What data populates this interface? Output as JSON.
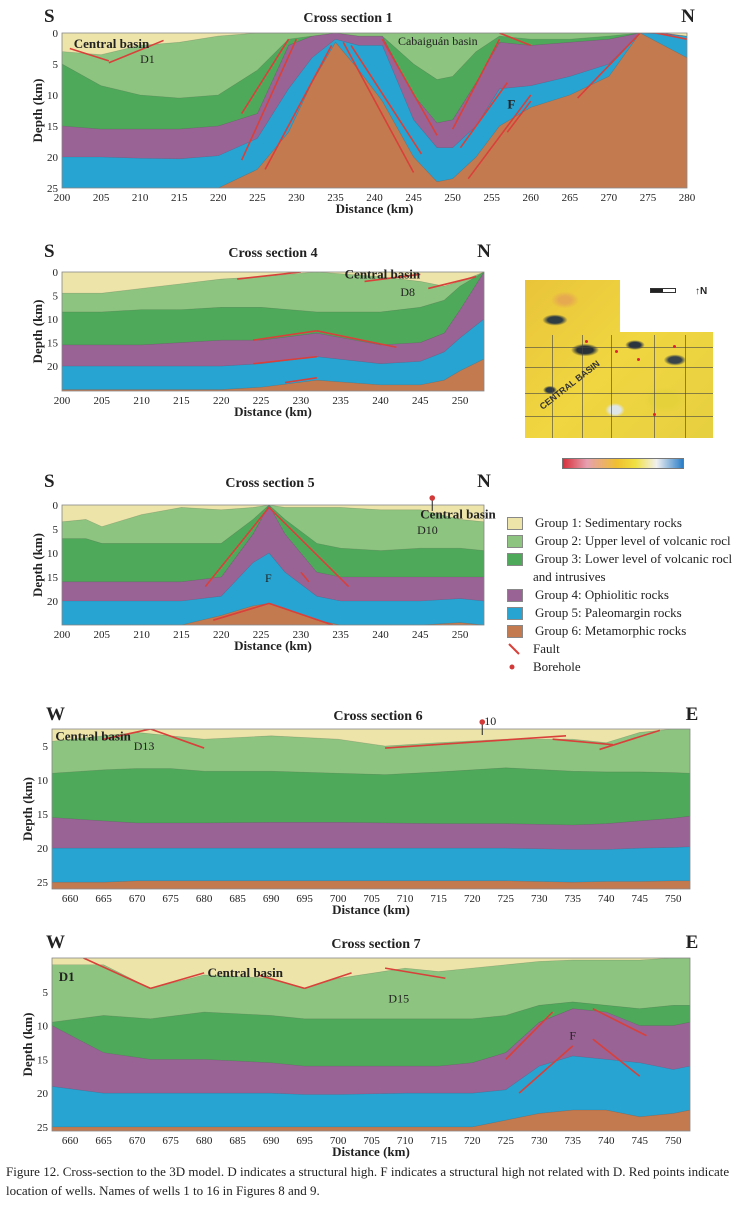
{
  "colors": {
    "g1": "#ece4a9",
    "g2": "#8dc47f",
    "g3": "#4fa95b",
    "g4": "#9a6396",
    "g5": "#28a4d3",
    "g6": "#c47a4f",
    "fault": "#d9403a",
    "borehole": "#d23a3a"
  },
  "axis": {
    "depth_label": "Depth (km)",
    "distance_label": "Distance (km)"
  },
  "sections": [
    {
      "title": "Cross section 1",
      "left": "S",
      "right": "N",
      "xlim": [
        200,
        280
      ],
      "ylim": [
        0,
        25
      ],
      "xticks": [
        200,
        205,
        210,
        215,
        220,
        225,
        230,
        235,
        240,
        245,
        250,
        255,
        260,
        265,
        270,
        275,
        280
      ],
      "yticks": [
        0,
        5,
        10,
        15,
        20,
        25
      ],
      "x": [
        200,
        205,
        210,
        215,
        220,
        225,
        229,
        232,
        235,
        238,
        241,
        245,
        248,
        250,
        253,
        256,
        260,
        265,
        270,
        274,
        277,
        280
      ],
      "boundaries": [
        [
          3,
          3.5,
          2,
          1.5,
          0.5,
          0,
          0,
          0,
          0,
          0,
          0,
          0,
          0,
          0,
          0,
          0,
          0,
          0,
          0,
          0,
          0,
          0.5
        ],
        [
          5,
          8.5,
          10,
          10.5,
          10,
          6,
          1,
          0.5,
          0,
          0.5,
          0.5,
          5,
          7.5,
          7,
          3,
          0.5,
          1,
          1,
          0.5,
          0,
          0,
          0.5
        ],
        [
          15,
          15.5,
          15.5,
          15.5,
          15,
          13,
          2,
          0.5,
          0,
          0.5,
          0.5,
          10,
          14.5,
          14,
          8,
          1.5,
          2,
          1.5,
          1,
          0,
          0,
          0.5
        ],
        [
          20,
          20,
          20.2,
          20.3,
          19.8,
          17,
          9,
          4,
          1,
          2,
          2,
          14,
          18.5,
          18.5,
          15,
          9,
          8.5,
          7,
          5,
          0,
          0.2,
          0.5
        ],
        [
          25,
          25,
          25,
          25,
          25,
          22,
          16,
          8,
          1.5,
          6,
          11,
          20,
          24,
          23.5,
          20,
          15,
          12,
          10,
          7,
          0,
          2,
          4
        ]
      ],
      "faults": [
        [
          201,
          2.5,
          206,
          4.5
        ],
        [
          206,
          4.8,
          213,
          1.2
        ],
        [
          223,
          13,
          229,
          1
        ],
        [
          223,
          20.5,
          230,
          1
        ],
        [
          226,
          22,
          234.5,
          2
        ],
        [
          236,
          1.5,
          245,
          22.5
        ],
        [
          237,
          2,
          246,
          19.5
        ],
        [
          241,
          1,
          248,
          16.5
        ],
        [
          250,
          15.5,
          256,
          1
        ],
        [
          251,
          18.5,
          257,
          8
        ],
        [
          252,
          23.5,
          260,
          10
        ],
        [
          257,
          16,
          260,
          11
        ],
        [
          266,
          10.5,
          274,
          0
        ],
        [
          256,
          0,
          260,
          2
        ],
        [
          276,
          0,
          280,
          1
        ]
      ],
      "labels": [
        {
          "text": "Central basin",
          "x": 201.5,
          "y": 1.8,
          "bold": true
        },
        {
          "text": "D1",
          "x": 210,
          "y": 4.2
        },
        {
          "text": "Cabaiguán basin",
          "x": 243,
          "y": 1.3
        },
        {
          "text": "F",
          "x": 257,
          "y": 11.5,
          "bold": true
        }
      ],
      "boreholes": []
    },
    {
      "title": "Cross section 4",
      "left": "S",
      "right": "N",
      "xlim": [
        200,
        253
      ],
      "ylim": [
        0,
        25.3
      ],
      "xticks": [
        200,
        205,
        210,
        215,
        220,
        225,
        230,
        235,
        240,
        245,
        250
      ],
      "yticks": [
        0,
        5,
        10,
        15,
        20
      ],
      "x": [
        200,
        205,
        210,
        215,
        220,
        225,
        232,
        240,
        245,
        248,
        250,
        253
      ],
      "boundaries": [
        [
          4.5,
          4.5,
          3.5,
          2.5,
          1.5,
          1,
          0,
          1,
          2,
          3,
          2,
          0
        ],
        [
          8.5,
          8.5,
          8,
          8,
          7.5,
          7.5,
          8.5,
          8.5,
          7.5,
          6,
          3,
          0
        ],
        [
          15.5,
          15.5,
          15.5,
          15,
          14.5,
          14.5,
          13,
          15.5,
          15,
          13,
          8,
          0
        ],
        [
          20,
          20,
          20,
          20,
          20,
          19.5,
          18,
          19.5,
          19,
          17,
          14,
          10
        ],
        [
          25,
          25,
          25,
          25,
          25,
          24.5,
          23,
          24,
          24,
          23,
          21,
          18.5
        ]
      ],
      "faults": [
        [
          222,
          1.5,
          230,
          0
        ],
        [
          238,
          2,
          245,
          0.5
        ],
        [
          246,
          3.5,
          252,
          1
        ],
        [
          224,
          14.5,
          232,
          12.5
        ],
        [
          232,
          12.5,
          242,
          16
        ],
        [
          224,
          19.5,
          232,
          18
        ],
        [
          228,
          23.5,
          232,
          22.5
        ]
      ],
      "labels": [
        {
          "text": "Central basin",
          "x": 235.5,
          "y": 0.5,
          "bold": true
        },
        {
          "text": "D8",
          "x": 242.5,
          "y": 4.2
        }
      ],
      "boreholes": []
    },
    {
      "title": "Cross section 5",
      "left": "S",
      "right": "N",
      "xlim": [
        200,
        253
      ],
      "ylim": [
        0,
        25
      ],
      "xticks": [
        200,
        205,
        210,
        215,
        220,
        225,
        230,
        235,
        240,
        245,
        250
      ],
      "yticks": [
        0,
        5,
        10,
        15,
        20
      ],
      "x": [
        200,
        203,
        205,
        210,
        215,
        220,
        224,
        226,
        228,
        232,
        235,
        240,
        245,
        250,
        253
      ],
      "boundaries": [
        [
          3.5,
          3,
          4.5,
          2,
          0.5,
          1,
          0.5,
          0,
          0.5,
          0.5,
          0.5,
          1,
          1,
          3,
          3.5
        ],
        [
          7,
          7,
          8,
          8,
          8,
          8,
          3,
          0,
          3,
          8,
          9,
          9.5,
          9,
          9,
          9.5
        ],
        [
          16,
          16,
          16,
          16,
          16,
          15,
          6,
          0,
          6,
          14,
          15,
          15,
          15,
          15,
          15
        ],
        [
          20,
          20,
          20,
          20,
          20,
          19,
          12,
          10,
          14,
          19,
          20,
          20,
          20,
          19.5,
          20
        ],
        [
          25,
          25,
          25,
          25,
          25,
          23,
          21,
          20.5,
          21.5,
          24,
          25,
          25,
          25,
          24.5,
          25
        ]
      ],
      "faults": [
        [
          218,
          17,
          226,
          0.5
        ],
        [
          226,
          0.5,
          236,
          17
        ],
        [
          219,
          24,
          226,
          20.5
        ],
        [
          226,
          20.5,
          234,
          25
        ],
        [
          230,
          14,
          231,
          16
        ]
      ],
      "labels": [
        {
          "text": "Central basin",
          "x": 245,
          "y": 2,
          "bold": true
        },
        {
          "text": "D10",
          "x": 244.6,
          "y": 5.2
        },
        {
          "text": "F",
          "x": 225.5,
          "y": 15.2
        }
      ],
      "boreholes": [
        {
          "x": 246.5,
          "label": ""
        }
      ]
    },
    {
      "title": "Cross section 6",
      "left": "W",
      "right": "E",
      "xlim": [
        657.3,
        752.5
      ],
      "ylim": [
        2.5,
        26
      ],
      "xticks": [
        660,
        665,
        670,
        675,
        680,
        685,
        690,
        695,
        700,
        705,
        710,
        715,
        720,
        725,
        730,
        735,
        740,
        745,
        750
      ],
      "yticks": [
        5,
        10,
        15,
        20,
        25
      ],
      "x": [
        657,
        665,
        670,
        675,
        680,
        690,
        700,
        707,
        715,
        725,
        735,
        740,
        745,
        750,
        753
      ],
      "boundaries": [
        [
          4.3,
          3.5,
          3,
          3.5,
          4,
          3.5,
          4,
          5,
          4.5,
          4,
          4,
          4.5,
          3,
          2.5,
          2.5
        ],
        [
          9,
          8.5,
          8.3,
          8.3,
          8.7,
          8.7,
          9,
          9.2,
          8.8,
          8.2,
          8.7,
          8.8,
          8.8,
          8.9,
          9
        ],
        [
          15.5,
          16,
          16.3,
          16.3,
          16.3,
          16.2,
          16.2,
          16.3,
          16.4,
          16.4,
          16.6,
          16.4,
          16,
          15.6,
          15.3
        ],
        [
          20,
          20,
          20,
          20,
          20,
          20,
          20,
          20,
          20,
          20,
          20.2,
          20.2,
          20,
          19.9,
          19.8
        ],
        [
          25,
          25,
          24.8,
          24.8,
          24.8,
          24.8,
          24.8,
          24.8,
          24.8,
          24.8,
          25,
          24.9,
          24.9,
          24.8,
          24.8
        ]
      ],
      "faults": [
        [
          665,
          4,
          672,
          2.5
        ],
        [
          672,
          2.5,
          680,
          5.3
        ],
        [
          707,
          5.3,
          734,
          3.5
        ],
        [
          732,
          4,
          741,
          4.8
        ],
        [
          739,
          5.5,
          748,
          2.7
        ]
      ],
      "labels": [
        {
          "text": "Central basin",
          "x": 657.8,
          "y": 3.6,
          "bold": true
        },
        {
          "text": "D13",
          "x": 669.5,
          "y": 5
        }
      ],
      "boreholes": [
        {
          "x": 721.5,
          "label": "10"
        }
      ]
    },
    {
      "title": "Cross section 7",
      "left": "W",
      "right": "E",
      "xlim": [
        657.3,
        752.5
      ],
      "ylim": [
        0,
        25.6
      ],
      "xticks": [
        660,
        665,
        670,
        675,
        680,
        685,
        690,
        695,
        700,
        705,
        710,
        715,
        720,
        725,
        730,
        735,
        740,
        745,
        750
      ],
      "yticks": [
        5,
        10,
        15,
        20,
        25
      ],
      "x": [
        657,
        665,
        672,
        680,
        690,
        695,
        700,
        710,
        715,
        720,
        725,
        730,
        735,
        740,
        745,
        750,
        753
      ],
      "boundaries": [
        [
          1,
          1,
          4.5,
          2.5,
          3,
          4.5,
          3,
          1.5,
          2,
          1.5,
          1,
          0.5,
          0.3,
          0.3,
          0.3,
          0,
          0
        ],
        [
          9.5,
          8.5,
          9,
          8,
          8.5,
          9,
          9,
          9,
          9,
          9,
          8.5,
          7,
          6.5,
          7,
          7.5,
          7,
          7
        ],
        [
          10,
          14,
          15,
          15,
          15.5,
          16,
          16,
          16,
          16,
          15.5,
          14,
          9.5,
          7.5,
          8,
          10,
          10,
          9.5
        ],
        [
          19,
          20,
          20,
          20,
          20,
          20.2,
          20.2,
          20,
          20,
          20,
          19.5,
          16,
          14.5,
          15,
          15.5,
          16.5,
          16
        ],
        [
          25,
          25,
          25,
          25,
          25,
          25,
          25,
          25,
          25,
          25,
          24,
          23,
          22.5,
          22.5,
          23.5,
          23,
          22.5
        ]
      ],
      "faults": [
        [
          662,
          0,
          672,
          4.5
        ],
        [
          672,
          4.5,
          680,
          2.2
        ],
        [
          688,
          2.5,
          695,
          4.5
        ],
        [
          695,
          4.5,
          702,
          2.2
        ],
        [
          707,
          1.5,
          716,
          3
        ],
        [
          725,
          15,
          732,
          8
        ],
        [
          727,
          20,
          735,
          13
        ],
        [
          738,
          7.5,
          746,
          11.5
        ],
        [
          738,
          12,
          745,
          17.5
        ]
      ],
      "labels": [
        {
          "text": "D1",
          "x": 658.3,
          "y": 2.8,
          "bold": true
        },
        {
          "text": "Central basin",
          "x": 680.5,
          "y": 2.2,
          "bold": true
        },
        {
          "text": "D15",
          "x": 707.5,
          "y": 6
        },
        {
          "text": "F",
          "x": 734.5,
          "y": 11.5
        }
      ],
      "boreholes": []
    }
  ],
  "legend": {
    "items": [
      {
        "key": "g1",
        "label": "Group 1: Sedimentary rocks"
      },
      {
        "key": "g2",
        "label": "Group 2: Upper level of volcanic rocl"
      },
      {
        "key": "g3",
        "label": "Group 3: Lower level of volcanic rocl",
        "continuation": "and intrusives"
      },
      {
        "key": "g4",
        "label": "Group 4: Ophiolitic rocks"
      },
      {
        "key": "g5",
        "label": "Group 5: Paleomargin rocks"
      },
      {
        "key": "g6",
        "label": "Group 6: Metamorphic rocks"
      }
    ],
    "fault": "Fault",
    "borehole": "Borehole"
  },
  "map": {
    "basin_label": "CENTRAL BASIN",
    "north": "N"
  },
  "caption": "Figure 12. Cross-section to the 3D model. D indicates a structural high. F indicates a structural high not related with D. Red points indicate location of wells. Names of wells 1 to 16 in Figures 8 and 9."
}
